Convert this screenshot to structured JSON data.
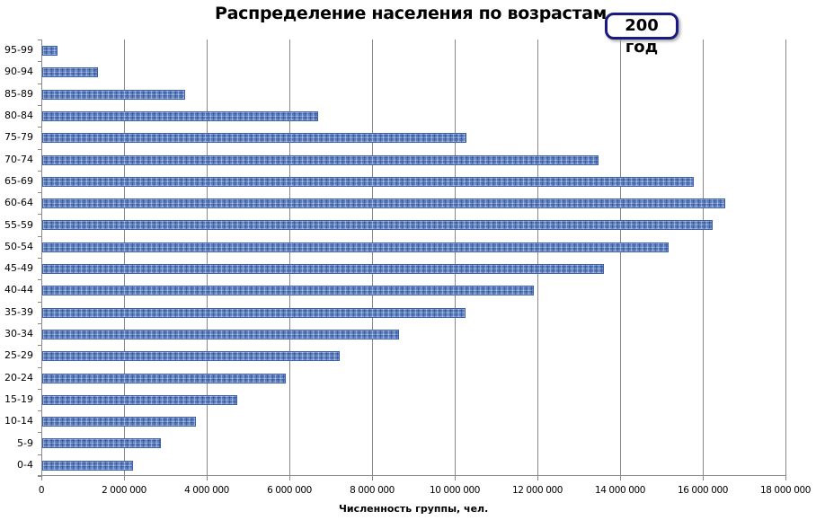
{
  "chart_data": {
    "type": "bar",
    "orientation": "horizontal",
    "title": "Распределение населения по возрастам",
    "annotation": "200 год",
    "xlabel": "Численность группы, чел.",
    "ylabel": "",
    "xlim": [
      0,
      18000000
    ],
    "xticks": [
      0,
      2000000,
      4000000,
      6000000,
      8000000,
      10000000,
      12000000,
      14000000,
      16000000,
      18000000
    ],
    "xtick_labels": [
      "0",
      "2 000 000",
      "4 000 000",
      "6 000 000",
      "8 000 000",
      "10 000 000",
      "12 000 000",
      "14 000 000",
      "16 000 000",
      "18 000 000"
    ],
    "grid": "vertical major gridlines",
    "legend": "none",
    "categories": [
      "95-99",
      "90-94",
      "85-89",
      "80-84",
      "75-79",
      "70-74",
      "65-69",
      "60-64",
      "55-59",
      "50-54",
      "45-49",
      "40-44",
      "35-39",
      "30-34",
      "25-29",
      "20-24",
      "15-19",
      "10-14",
      "5-9",
      "0-4"
    ],
    "values": [
      370000,
      1350000,
      3460000,
      6670000,
      10260000,
      13460000,
      15760000,
      16520000,
      16220000,
      15150000,
      13590000,
      11890000,
      10240000,
      8630000,
      7200000,
      5890000,
      4720000,
      3720000,
      2870000,
      2200000
    ],
    "bar_color": "#5b7fc0"
  }
}
